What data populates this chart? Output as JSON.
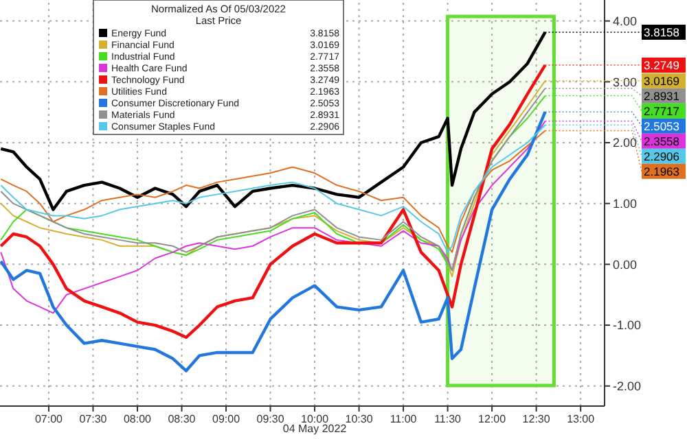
{
  "chart_data": {
    "type": "line",
    "legend_title": "Normalized As Of 05/03/2022",
    "annotations": [
      "Last Price"
    ],
    "xlabel": "04 May 2022",
    "x": [
      6.46,
      6.6,
      6.75,
      6.9,
      7.05,
      7.2,
      7.4,
      7.6,
      7.8,
      8.0,
      8.2,
      8.4,
      8.55,
      8.7,
      8.9,
      9.1,
      9.3,
      9.5,
      9.75,
      10.0,
      10.25,
      10.5,
      10.75,
      11.0,
      11.2,
      11.4,
      11.5,
      11.55,
      11.65,
      11.8,
      12.0,
      12.2,
      12.4,
      12.6
    ],
    "xlim": [
      6.45,
      13.27
    ],
    "xticks": [
      {
        "value": 7,
        "label": "07:00"
      },
      {
        "value": 7.5,
        "label": "07:30"
      },
      {
        "value": 8,
        "label": "08:00"
      },
      {
        "value": 8.5,
        "label": "08:30"
      },
      {
        "value": 9,
        "label": "09:00"
      },
      {
        "value": 9.5,
        "label": "09:30"
      },
      {
        "value": 10,
        "label": "10:00"
      },
      {
        "value": 10.5,
        "label": "10:30"
      },
      {
        "value": 11,
        "label": "11:00"
      },
      {
        "value": 11.5,
        "label": "11:30"
      },
      {
        "value": 12,
        "label": "12:00"
      },
      {
        "value": 12.5,
        "label": "12:30"
      },
      {
        "value": 13,
        "label": "13:00"
      }
    ],
    "ylim": [
      -2.33,
      4.3
    ],
    "yticks": [
      {
        "value": -2,
        "label": "-2.00"
      },
      {
        "value": -1,
        "label": "-1.00"
      },
      {
        "value": 0,
        "label": "0.00"
      },
      {
        "value": 1,
        "label": "1.00"
      },
      {
        "value": 2,
        "label": "2.00"
      },
      {
        "value": 3,
        "label": "3.00"
      },
      {
        "value": 4,
        "label": "4.00"
      }
    ],
    "grid": true,
    "legend": "top",
    "line_style": "solid",
    "marker": "none",
    "bands": [
      {
        "axis": "x",
        "from": 11.5,
        "to": 12.7,
        "color": "#66dd33"
      }
    ],
    "series": [
      {
        "name": "Energy Fund",
        "color": "#000000",
        "values": [
          1.9,
          1.85,
          1.6,
          1.4,
          0.9,
          1.2,
          1.3,
          1.35,
          1.25,
          1.1,
          1.25,
          1.15,
          0.95,
          1.2,
          1.3,
          0.95,
          1.2,
          1.25,
          1.3,
          1.25,
          1.15,
          1.1,
          1.35,
          1.6,
          2.0,
          2.1,
          2.4,
          1.3,
          1.9,
          2.5,
          2.8,
          3.0,
          3.3,
          3.8158
        ],
        "value_labels": [
          null,
          null,
          null,
          null,
          null,
          null,
          null,
          null,
          null,
          null,
          null,
          null,
          null,
          null,
          null,
          null,
          null,
          null,
          null,
          null,
          null,
          null,
          null,
          null,
          null,
          null,
          null,
          null,
          null,
          null,
          null,
          null,
          null,
          "3.8158"
        ]
      },
      {
        "name": "Financial Fund",
        "color": "#d4b030",
        "values": [
          1.0,
          0.8,
          0.7,
          0.6,
          0.55,
          0.5,
          0.45,
          0.4,
          0.3,
          0.3,
          0.3,
          0.2,
          0.15,
          0.3,
          0.45,
          0.5,
          0.55,
          0.6,
          0.75,
          0.8,
          0.55,
          0.4,
          0.35,
          0.6,
          0.4,
          0.3,
          0.0,
          -0.2,
          0.4,
          1.0,
          1.8,
          2.2,
          2.6,
          3.0169
        ],
        "value_labels": [
          null,
          null,
          null,
          null,
          null,
          null,
          null,
          null,
          null,
          null,
          null,
          null,
          null,
          null,
          null,
          null,
          null,
          null,
          null,
          null,
          null,
          null,
          null,
          null,
          null,
          null,
          null,
          null,
          null,
          null,
          null,
          null,
          null,
          "3.0169"
        ]
      },
      {
        "name": "Industrial Fund",
        "color": "#44dd22",
        "values": [
          0.4,
          0.7,
          0.9,
          0.8,
          0.7,
          0.6,
          0.55,
          0.5,
          0.45,
          0.4,
          0.3,
          0.2,
          0.15,
          0.25,
          0.4,
          0.45,
          0.5,
          0.55,
          0.75,
          0.85,
          0.5,
          0.35,
          0.35,
          0.65,
          0.4,
          0.25,
          0.0,
          -0.1,
          0.5,
          1.1,
          1.7,
          2.1,
          2.4,
          2.7717
        ],
        "value_labels": [
          null,
          null,
          null,
          null,
          null,
          null,
          null,
          null,
          null,
          null,
          null,
          null,
          null,
          null,
          null,
          null,
          null,
          null,
          null,
          null,
          null,
          null,
          null,
          null,
          null,
          null,
          null,
          null,
          null,
          null,
          null,
          null,
          null,
          "2.7717"
        ]
      },
      {
        "name": "Health Care Fund",
        "color": "#dd33dd",
        "values": [
          0.2,
          -0.4,
          -0.6,
          -0.7,
          -0.8,
          -0.5,
          -0.4,
          -0.3,
          -0.2,
          -0.1,
          0.1,
          0.2,
          0.3,
          0.35,
          0.3,
          0.25,
          0.3,
          0.45,
          0.6,
          0.6,
          0.4,
          0.35,
          0.3,
          0.55,
          0.35,
          0.3,
          0.1,
          -0.1,
          0.4,
          0.9,
          1.3,
          1.6,
          1.9,
          2.3558
        ],
        "value_labels": [
          null,
          null,
          null,
          null,
          null,
          null,
          null,
          null,
          null,
          null,
          null,
          null,
          null,
          null,
          null,
          null,
          null,
          null,
          null,
          null,
          null,
          null,
          null,
          null,
          null,
          null,
          null,
          null,
          null,
          null,
          null,
          null,
          null,
          "2.3558"
        ]
      },
      {
        "name": "Technology Fund",
        "color": "#ee1111",
        "values": [
          0.3,
          0.5,
          0.45,
          0.3,
          0.0,
          -0.4,
          -0.6,
          -0.7,
          -0.8,
          -0.95,
          -1.0,
          -1.1,
          -1.2,
          -1.0,
          -0.7,
          -0.6,
          -0.55,
          0.0,
          0.3,
          0.5,
          0.35,
          0.35,
          0.35,
          0.9,
          0.2,
          -0.1,
          -0.5,
          -0.7,
          0.0,
          0.8,
          1.9,
          2.3,
          2.8,
          3.2749
        ],
        "value_labels": [
          null,
          null,
          null,
          null,
          null,
          null,
          null,
          null,
          null,
          null,
          null,
          null,
          null,
          null,
          null,
          null,
          null,
          null,
          null,
          null,
          null,
          null,
          null,
          null,
          null,
          null,
          null,
          null,
          null,
          null,
          null,
          null,
          null,
          "3.2749"
        ]
      },
      {
        "name": "Utilities Fund",
        "color": "#e07020",
        "values": [
          1.4,
          1.3,
          1.2,
          1.0,
          0.7,
          0.8,
          0.9,
          1.05,
          1.1,
          1.15,
          1.1,
          1.2,
          1.3,
          1.25,
          1.35,
          1.4,
          1.45,
          1.5,
          1.6,
          1.5,
          1.3,
          1.2,
          1.05,
          1.1,
          0.8,
          0.6,
          0.3,
          0.2,
          0.7,
          1.2,
          1.55,
          1.7,
          1.95,
          2.1963
        ],
        "value_labels": [
          null,
          null,
          null,
          null,
          null,
          null,
          null,
          null,
          null,
          null,
          null,
          null,
          null,
          null,
          null,
          null,
          null,
          null,
          null,
          null,
          null,
          null,
          null,
          null,
          null,
          null,
          null,
          null,
          null,
          null,
          null,
          null,
          null,
          "2.1963"
        ]
      },
      {
        "name": "Consumer Discretionary Fund",
        "color": "#2277dd",
        "values": [
          0.05,
          -0.25,
          -0.1,
          -0.15,
          -0.7,
          -1.0,
          -1.3,
          -1.25,
          -1.3,
          -1.35,
          -1.4,
          -1.55,
          -1.75,
          -1.5,
          -1.45,
          -1.45,
          -1.45,
          -0.9,
          -0.55,
          -0.35,
          -0.7,
          -0.75,
          -0.7,
          -0.1,
          -0.95,
          -0.9,
          -0.55,
          -1.55,
          -1.4,
          -0.4,
          0.9,
          1.4,
          1.8,
          2.5053
        ],
        "value_labels": [
          null,
          null,
          null,
          null,
          null,
          null,
          null,
          null,
          null,
          null,
          null,
          null,
          null,
          null,
          null,
          null,
          null,
          null,
          null,
          null,
          null,
          null,
          null,
          null,
          null,
          null,
          null,
          null,
          null,
          null,
          null,
          null,
          null,
          "2.5053"
        ]
      },
      {
        "name": "Materials Fund",
        "color": "#909090",
        "values": [
          1.2,
          1.0,
          0.9,
          0.8,
          0.7,
          0.6,
          0.5,
          0.45,
          0.4,
          0.35,
          0.35,
          0.3,
          0.2,
          0.3,
          0.45,
          0.5,
          0.55,
          0.6,
          0.8,
          0.9,
          0.6,
          0.45,
          0.4,
          0.7,
          0.45,
          0.3,
          0.05,
          -0.1,
          0.5,
          1.1,
          1.7,
          2.1,
          2.5,
          2.8931
        ],
        "value_labels": [
          null,
          null,
          null,
          null,
          null,
          null,
          null,
          null,
          null,
          null,
          null,
          null,
          null,
          null,
          null,
          null,
          null,
          null,
          null,
          null,
          null,
          null,
          null,
          null,
          null,
          null,
          null,
          null,
          null,
          null,
          null,
          null,
          null,
          "2.8931"
        ]
      },
      {
        "name": "Consumer Staples Fund",
        "color": "#55c8e8",
        "values": [
          1.3,
          1.1,
          0.9,
          0.85,
          0.8,
          0.8,
          0.75,
          0.8,
          0.9,
          0.95,
          1.0,
          1.05,
          1.0,
          1.1,
          1.15,
          1.2,
          1.25,
          1.3,
          1.35,
          1.25,
          1.0,
          0.9,
          0.8,
          0.95,
          0.7,
          0.5,
          0.2,
          0.3,
          0.8,
          1.2,
          1.6,
          1.8,
          2.0,
          2.2906
        ],
        "value_labels": [
          null,
          null,
          null,
          null,
          null,
          null,
          null,
          null,
          null,
          null,
          null,
          null,
          null,
          null,
          null,
          null,
          null,
          null,
          null,
          null,
          null,
          null,
          null,
          null,
          null,
          null,
          null,
          null,
          null,
          null,
          null,
          null,
          null,
          "2.2906"
        ]
      }
    ]
  }
}
